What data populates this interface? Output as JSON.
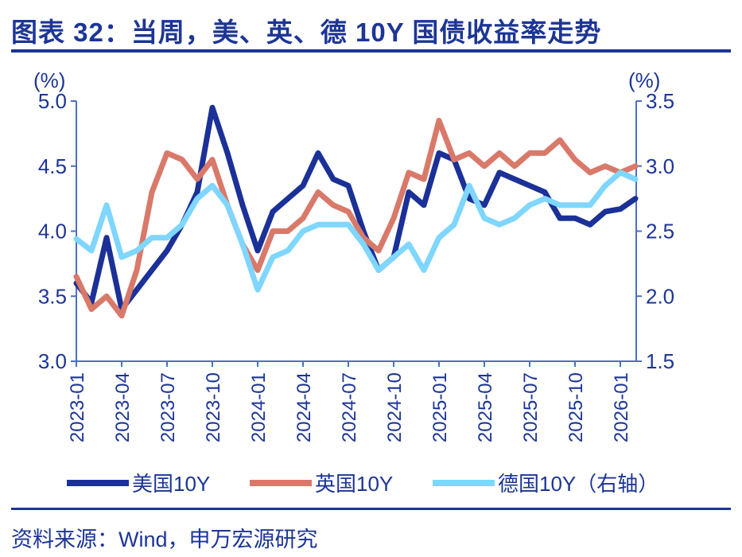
{
  "title": "图表 32：当周，美、英、德 10Y 国债收益率走势",
  "source": "资料来源：Wind，申万宏源研究",
  "colors": {
    "accent": "#1c3596",
    "axis": "#4a6fc4"
  },
  "chart_data": {
    "type": "line",
    "left_unit": "(%)",
    "right_unit": "(%)",
    "ylim_left": [
      3.0,
      5.0
    ],
    "yticks_left": [
      "3.0",
      "3.5",
      "4.0",
      "4.5",
      "5.0"
    ],
    "ylim_right": [
      1.5,
      3.5
    ],
    "yticks_right": [
      "1.5",
      "2.0",
      "2.5",
      "3.0",
      "3.5"
    ],
    "xticks": [
      "2023-01",
      "2023-04",
      "2023-07",
      "2023-10",
      "2024-01",
      "2024-04",
      "2024-07",
      "2024-10",
      "2025-01",
      "2025-04",
      "2025-07",
      "2025-10",
      "2026-01"
    ],
    "x": [
      "2023-01",
      "2023-02",
      "2023-03",
      "2023-04",
      "2023-05",
      "2023-06",
      "2023-07",
      "2023-08",
      "2023-09",
      "2023-10",
      "2023-11",
      "2023-12",
      "2024-01",
      "2024-02",
      "2024-03",
      "2024-04",
      "2024-05",
      "2024-06",
      "2024-07",
      "2024-08",
      "2024-09",
      "2024-10",
      "2024-11",
      "2024-12",
      "2025-01",
      "2025-02",
      "2025-03",
      "2025-04",
      "2025-05",
      "2025-06",
      "2025-07",
      "2025-08",
      "2025-09",
      "2025-10",
      "2025-11",
      "2025-12",
      "2026-01",
      "2026-02"
    ],
    "series": [
      {
        "name": "美国10Y",
        "axis": "left",
        "color": "#1b3198",
        "values": [
          3.6,
          3.45,
          3.95,
          3.4,
          3.55,
          3.7,
          3.85,
          4.05,
          4.3,
          4.95,
          4.6,
          4.2,
          3.85,
          4.15,
          4.25,
          4.35,
          4.6,
          4.4,
          4.35,
          4.0,
          3.7,
          3.8,
          4.3,
          4.2,
          4.6,
          4.55,
          4.25,
          4.2,
          4.45,
          4.4,
          4.35,
          4.3,
          4.1,
          4.1,
          4.05,
          4.15,
          4.17,
          4.25
        ]
      },
      {
        "name": "英国10Y",
        "axis": "left",
        "color": "#d9796a",
        "values": [
          3.65,
          3.4,
          3.5,
          3.35,
          3.7,
          4.3,
          4.6,
          4.55,
          4.4,
          4.55,
          4.2,
          3.9,
          3.7,
          4.0,
          4.0,
          4.1,
          4.3,
          4.2,
          4.15,
          3.95,
          3.85,
          4.1,
          4.45,
          4.4,
          4.85,
          4.55,
          4.6,
          4.5,
          4.6,
          4.5,
          4.6,
          4.6,
          4.7,
          4.55,
          4.45,
          4.5,
          4.45,
          4.5
        ]
      },
      {
        "name": "德国10Y（右轴）",
        "axis": "right",
        "color": "#7fd6ff",
        "values": [
          2.44,
          2.35,
          2.7,
          2.3,
          2.35,
          2.45,
          2.45,
          2.55,
          2.75,
          2.85,
          2.7,
          2.4,
          2.05,
          2.3,
          2.35,
          2.5,
          2.55,
          2.55,
          2.55,
          2.4,
          2.2,
          2.3,
          2.4,
          2.2,
          2.45,
          2.55,
          2.85,
          2.6,
          2.55,
          2.6,
          2.7,
          2.75,
          2.7,
          2.7,
          2.7,
          2.85,
          2.95,
          2.9
        ]
      }
    ]
  }
}
